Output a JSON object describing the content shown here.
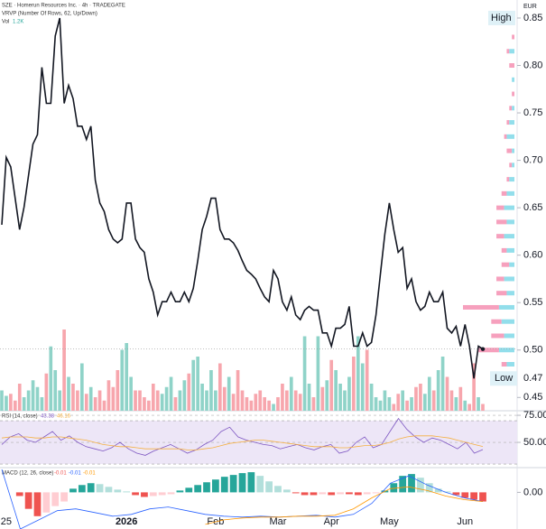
{
  "chart_data": [
    {
      "type": "line",
      "title": "SZE · Homerun Resources Inc. · 4h · TRADEGATE",
      "vrvp_label": "VRVP (Number Of Rows, 62, Up/Down)",
      "currency": "EUR",
      "color": "#131722",
      "values": [
        0.632,
        0.703,
        0.693,
        0.66,
        0.627,
        0.651,
        0.684,
        0.717,
        0.727,
        0.798,
        0.76,
        0.76,
        0.831,
        0.85,
        0.76,
        0.779,
        0.765,
        0.736,
        0.736,
        0.722,
        0.736,
        0.679,
        0.655,
        0.646,
        0.627,
        0.617,
        0.613,
        0.617,
        0.655,
        0.655,
        0.617,
        0.608,
        0.603,
        0.575,
        0.561,
        0.537,
        0.551,
        0.551,
        0.561,
        0.551,
        0.551,
        0.561,
        0.551,
        0.565,
        0.594,
        0.627,
        0.641,
        0.66,
        0.66,
        0.627,
        0.617,
        0.617,
        0.613,
        0.605,
        0.594,
        0.584,
        0.58,
        0.575,
        0.565,
        0.556,
        0.551,
        0.584,
        0.575,
        0.551,
        0.542,
        0.556,
        0.537,
        0.532,
        0.542,
        0.546,
        0.542,
        0.542,
        0.518,
        0.518,
        0.504,
        0.523,
        0.523,
        0.527,
        0.546,
        0.504,
        0.504,
        0.518,
        0.504,
        0.508,
        0.537,
        0.58,
        0.622,
        0.655,
        0.627,
        0.603,
        0.608,
        0.565,
        0.575,
        0.551,
        0.542,
        0.546,
        0.561,
        0.551,
        0.551,
        0.561,
        0.523,
        0.518,
        0.525,
        0.504,
        0.527,
        0.504,
        0.47,
        0.504,
        0.501
      ],
      "ylim": [
        0.436,
        0.869
      ],
      "yticks": [
        0.45,
        {
          "value": 0.5,
          "label": "0.50"
        },
        0.55,
        {
          "value": 0.6,
          "label": "0.60"
        },
        0.65,
        {
          "value": 0.7,
          "label": "0.70"
        },
        0.75,
        {
          "value": 0.8,
          "label": "0.80"
        },
        0.85
      ],
      "xticks": [
        {
          "value": 1,
          "label": "25"
        },
        {
          "value": 28,
          "label": "2026"
        },
        {
          "value": 48,
          "label": "Feb"
        },
        {
          "value": 62,
          "label": "Mar"
        },
        {
          "value": 74,
          "label": "Apr"
        },
        {
          "value": 87,
          "label": "May"
        },
        {
          "value": 104,
          "label": "Jun"
        }
      ],
      "high": {
        "label": "High",
        "value": 0.85
      },
      "low": {
        "label": "Low",
        "value": 0.47
      },
      "volume": {
        "name": "Vol",
        "value_label": "1.2K",
        "up_color": "#8fd3c8",
        "down_color": "#f7a6ad",
        "values": [
          0.3,
          0.22,
          0.25,
          0.15,
          0.4,
          0.2,
          0.3,
          0.45,
          0.35,
          0.2,
          0.55,
          0.95,
          0.6,
          0.3,
          1.2,
          0.5,
          0.4,
          0.3,
          0.7,
          0.25,
          0.35,
          0.2,
          0.3,
          0.15,
          0.45,
          0.35,
          0.6,
          0.9,
          1.0,
          0.5,
          0.3,
          0.3,
          0.2,
          0.15,
          0.4,
          0.3,
          0.25,
          0.35,
          0.5,
          0.2,
          0.3,
          0.45,
          0.55,
          0.75,
          0.8,
          0.4,
          0.3,
          0.6,
          0.3,
          0.7,
          0.35,
          0.5,
          0.25,
          0.6,
          0.3,
          0.2,
          0.15,
          0.25,
          0.3,
          0.2,
          0.15,
          0.1,
          0.2,
          0.4,
          0.3,
          0.5,
          0.3,
          0.25,
          1.1,
          0.4,
          0.2,
          1.1,
          0.35,
          0.45,
          0.75,
          0.6,
          0.4,
          0.3,
          0.5,
          0.8,
          1.1,
          0.7,
          0.9,
          0.4,
          0.2,
          0.15,
          0.3,
          0.2,
          0.1,
          0.25,
          0.3,
          0.15,
          0.2,
          0.35,
          0.4,
          0.25,
          0.5,
          0.3,
          0.6,
          0.8,
          0.5,
          0.3,
          0.2,
          0.35,
          0.15,
          0.1,
          0.7,
          0.2,
          0.1
        ]
      },
      "vrvp": {
        "up_color": "#7fd8e8",
        "down_color": "#f48fb1",
        "levels": [
          0.845,
          0.83,
          0.815,
          0.8,
          0.785,
          0.77,
          0.755,
          0.74,
          0.725,
          0.71,
          0.695,
          0.68,
          0.665,
          0.65,
          0.635,
          0.62,
          0.605,
          0.59,
          0.575,
          0.56,
          0.545,
          0.53,
          0.515,
          0.5,
          0.485,
          0.47
        ],
        "up": [
          1,
          0,
          2,
          0,
          1,
          0,
          1,
          2,
          3,
          1,
          1,
          2,
          3,
          4,
          3,
          4,
          3,
          2,
          4,
          3,
          6,
          5,
          4,
          6,
          3,
          1
        ],
        "down": [
          0,
          1,
          1,
          2,
          0,
          1,
          1,
          1,
          1,
          2,
          1,
          1,
          2,
          3,
          4,
          3,
          2,
          3,
          3,
          4,
          14,
          4,
          5,
          8,
          2,
          2
        ]
      }
    },
    {
      "type": "line",
      "title": "RSI (14, close)",
      "ylim": [
        26.7,
        79.2
      ],
      "yticks": [
        {
          "value": 75,
          "label": "75.00"
        },
        {
          "value": 50,
          "label": "50.00"
        }
      ],
      "band": [
        30,
        70
      ],
      "band_color": "#ede6f7",
      "series": [
        {
          "color": "#7e57c2",
          "values": [
            48,
            55,
            58,
            52,
            50,
            55,
            60,
            52,
            56,
            50,
            46,
            44,
            42,
            45,
            50,
            44,
            40,
            38,
            42,
            45,
            48,
            44,
            40,
            43,
            48,
            52,
            60,
            64,
            55,
            52,
            50,
            48,
            47,
            44,
            46,
            48,
            45,
            43,
            46,
            48,
            40,
            42,
            50,
            55,
            45,
            48,
            60,
            72,
            62,
            55,
            50,
            54,
            52,
            48,
            44,
            50,
            40,
            43.38
          ]
        },
        {
          "color": "#f5b041",
          "values": [
            54,
            55,
            55,
            55,
            54,
            54,
            55,
            55,
            54,
            53,
            52,
            50,
            48,
            47,
            46,
            46,
            45,
            44,
            44,
            44,
            44,
            44,
            43,
            43,
            44,
            45,
            47,
            49,
            50,
            51,
            52,
            52,
            51,
            50,
            49,
            48,
            47,
            46,
            46,
            46,
            45,
            45,
            46,
            47,
            47,
            48,
            50,
            53,
            55,
            56,
            56,
            56,
            55,
            54,
            52,
            50,
            48,
            46.16
          ]
        }
      ]
    },
    {
      "type": "macd",
      "title": "MACD (12, 26, close)",
      "ylim": [
        -0.04,
        0.027
      ],
      "yticks": [
        {
          "value": 0,
          "label": "0.00"
        }
      ],
      "histogram": {
        "colors": [
          "#26a69a",
          "#b2dfdb",
          "#ef5350",
          "#ffcdd2"
        ],
        "values": [
          0.0,
          0.0,
          -0.004,
          -0.018,
          -0.026,
          -0.022,
          -0.015,
          -0.01,
          0.004,
          0.008,
          0.01,
          0.009,
          0.006,
          0.003,
          0.001,
          -0.003,
          -0.005,
          -0.004,
          -0.003,
          -0.002,
          0.002,
          0.005,
          0.008,
          0.011,
          0.014,
          0.017,
          0.019,
          0.021,
          0.022,
          0.018,
          0.012,
          0.007,
          0.003,
          -0.001,
          -0.003,
          -0.003,
          -0.002,
          -0.003,
          -0.002,
          -0.002,
          -0.003,
          -0.002,
          -0.001,
          0.002,
          0.01,
          0.018,
          0.02,
          0.016,
          0.01,
          0.004,
          0.001,
          -0.003,
          -0.006,
          -0.008,
          -0.01
        ]
      },
      "series": [
        {
          "color": "#2962ff",
          "values": [
            0.025,
            -0.04,
            -0.03,
            -0.02,
            -0.018,
            -0.022,
            -0.026,
            -0.024,
            -0.018,
            -0.016,
            -0.02,
            -0.024,
            -0.026,
            -0.027,
            -0.026,
            -0.027,
            -0.026,
            -0.025,
            -0.027,
            -0.024,
            -0.012,
            0.01,
            0.018,
            0.008,
            0.0,
            -0.006,
            -0.01
          ]
        },
        {
          "color": "#ff9800",
          "values": [
            null,
            null,
            null,
            null,
            null,
            null,
            null,
            null,
            null,
            null,
            null,
            -0.035,
            -0.03,
            -0.028,
            -0.027,
            -0.027,
            -0.026,
            -0.026,
            -0.025,
            -0.018,
            -0.006,
            0.004,
            0.006,
            0.002,
            -0.004,
            -0.008,
            -0.01
          ]
        }
      ]
    }
  ]
}
